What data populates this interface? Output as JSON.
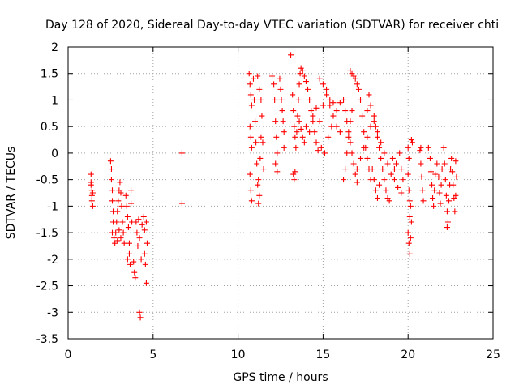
{
  "chart_data": {
    "type": "scatter",
    "title": "Day 128 of 2020, Sidereal Day-to-day VTEC variation (SDTVAR) for receiver chti",
    "xlabel": "GPS time / hours",
    "ylabel": "SDTVAR / TECUs",
    "xlim": [
      0,
      25
    ],
    "ylim": [
      -3.5,
      2
    ],
    "xticks": [
      0,
      5,
      10,
      15,
      20,
      25
    ],
    "yticks": [
      -3.5,
      -3,
      -2.5,
      -2,
      -1.5,
      -1,
      -0.5,
      0,
      0.5,
      1,
      1.5,
      2
    ],
    "xtick_labels": [
      "0",
      "5",
      "10",
      "15",
      "20",
      "25"
    ],
    "ytick_labels": [
      "-3.5",
      "-3",
      "-2.5",
      "-2",
      "-1.5",
      "-1",
      "-0.5",
      "0",
      "0.5",
      "1",
      "1.5",
      "2"
    ],
    "grid": true,
    "marker": "+",
    "color": "#ff0000",
    "points": [
      [
        1.35,
        -0.4
      ],
      [
        1.35,
        -0.55
      ],
      [
        1.4,
        -0.7
      ],
      [
        1.4,
        -0.8
      ],
      [
        1.4,
        -0.9
      ],
      [
        1.45,
        -1.0
      ],
      [
        1.35,
        -0.6
      ],
      [
        1.45,
        -0.75
      ],
      [
        2.5,
        -0.15
      ],
      [
        2.55,
        -0.3
      ],
      [
        2.55,
        -0.5
      ],
      [
        2.6,
        -0.7
      ],
      [
        2.6,
        -0.9
      ],
      [
        2.65,
        -1.1
      ],
      [
        2.65,
        -1.3
      ],
      [
        2.6,
        -1.5
      ],
      [
        2.7,
        -1.6
      ],
      [
        2.75,
        -1.7
      ],
      [
        2.8,
        -1.5
      ],
      [
        2.85,
        -1.3
      ],
      [
        2.9,
        -1.1
      ],
      [
        2.95,
        -0.9
      ],
      [
        3.0,
        -0.7
      ],
      [
        3.05,
        -0.55
      ],
      [
        3.1,
        -0.75
      ],
      [
        3.15,
        -1.0
      ],
      [
        3.2,
        -1.3
      ],
      [
        3.25,
        -1.5
      ],
      [
        3.3,
        -1.7
      ],
      [
        3.1,
        -1.6
      ],
      [
        3.0,
        -1.45
      ],
      [
        2.9,
        -1.65
      ],
      [
        3.4,
        -0.8
      ],
      [
        3.45,
        -1.0
      ],
      [
        3.5,
        -1.2
      ],
      [
        3.55,
        -1.4
      ],
      [
        3.6,
        -1.7
      ],
      [
        3.6,
        -1.9
      ],
      [
        3.65,
        -2.1
      ],
      [
        3.5,
        -2.0
      ],
      [
        3.7,
        -0.7
      ],
      [
        3.7,
        -0.95
      ],
      [
        3.75,
        -1.3
      ],
      [
        3.85,
        -2.05
      ],
      [
        3.9,
        -2.25
      ],
      [
        3.95,
        -2.35
      ],
      [
        4.0,
        -1.3
      ],
      [
        4.05,
        -1.5
      ],
      [
        4.1,
        -1.75
      ],
      [
        4.15,
        -1.25
      ],
      [
        4.2,
        -1.6
      ],
      [
        4.2,
        -3.0
      ],
      [
        4.25,
        -3.1
      ],
      [
        4.3,
        -2.0
      ],
      [
        4.35,
        -1.35
      ],
      [
        4.45,
        -1.2
      ],
      [
        4.5,
        -1.45
      ],
      [
        4.5,
        -1.9
      ],
      [
        4.55,
        -2.1
      ],
      [
        4.6,
        -2.45
      ],
      [
        4.6,
        -1.3
      ],
      [
        4.65,
        -1.7
      ],
      [
        6.7,
        0.0
      ],
      [
        6.7,
        -0.95
      ],
      [
        10.65,
        1.5
      ],
      [
        10.7,
        1.3
      ],
      [
        10.75,
        1.1
      ],
      [
        10.8,
        0.9
      ],
      [
        10.7,
        0.5
      ],
      [
        10.75,
        0.3
      ],
      [
        10.8,
        0.1
      ],
      [
        10.7,
        -0.4
      ],
      [
        10.75,
        -0.7
      ],
      [
        10.8,
        -0.9
      ],
      [
        10.9,
        1.4
      ],
      [
        10.95,
        1.0
      ],
      [
        11.0,
        0.6
      ],
      [
        11.05,
        0.2
      ],
      [
        11.1,
        -0.2
      ],
      [
        11.15,
        -0.6
      ],
      [
        11.2,
        -0.95
      ],
      [
        11.25,
        -0.8
      ],
      [
        11.2,
        -0.5
      ],
      [
        11.3,
        -0.1
      ],
      [
        11.35,
        0.3
      ],
      [
        11.4,
        0.7
      ],
      [
        11.35,
        1.0
      ],
      [
        11.15,
        1.45
      ],
      [
        11.25,
        1.2
      ],
      [
        11.45,
        0.2
      ],
      [
        11.5,
        -0.3
      ],
      [
        12.0,
        1.45
      ],
      [
        12.1,
        1.3
      ],
      [
        12.15,
        1.0
      ],
      [
        12.2,
        0.6
      ],
      [
        12.25,
        0.3
      ],
      [
        12.3,
        0.0
      ],
      [
        12.2,
        -0.2
      ],
      [
        12.3,
        -0.35
      ],
      [
        12.45,
        1.4
      ],
      [
        12.5,
        1.2
      ],
      [
        12.55,
        1.0
      ],
      [
        12.6,
        0.8
      ],
      [
        12.65,
        0.6
      ],
      [
        12.7,
        0.4
      ],
      [
        12.7,
        0.1
      ],
      [
        13.1,
        1.85
      ],
      [
        13.25,
        -0.4
      ],
      [
        13.3,
        -0.5
      ],
      [
        13.35,
        -0.35
      ],
      [
        13.2,
        1.1
      ],
      [
        13.25,
        0.8
      ],
      [
        13.3,
        0.5
      ],
      [
        13.35,
        0.3
      ],
      [
        13.4,
        0.1
      ],
      [
        13.45,
        0.4
      ],
      [
        13.5,
        0.7
      ],
      [
        13.55,
        1.0
      ],
      [
        13.6,
        1.3
      ],
      [
        13.65,
        1.5
      ],
      [
        13.7,
        1.6
      ],
      [
        13.8,
        1.55
      ],
      [
        13.9,
        1.45
      ],
      [
        14.0,
        1.35
      ],
      [
        14.1,
        1.2
      ],
      [
        14.2,
        1.0
      ],
      [
        14.3,
        0.8
      ],
      [
        14.4,
        0.6
      ],
      [
        14.5,
        0.4
      ],
      [
        14.6,
        0.2
      ],
      [
        14.7,
        0.05
      ],
      [
        13.6,
        0.6
      ],
      [
        13.7,
        0.45
      ],
      [
        13.8,
        0.3
      ],
      [
        13.9,
        0.2
      ],
      [
        14.0,
        0.5
      ],
      [
        14.2,
        0.4
      ],
      [
        14.4,
        0.7
      ],
      [
        14.6,
        0.85
      ],
      [
        14.8,
        0.6
      ],
      [
        15.0,
        0.9
      ],
      [
        15.2,
        1.1
      ],
      [
        15.4,
        0.9
      ],
      [
        15.6,
        0.7
      ],
      [
        15.8,
        0.5
      ],
      [
        16.0,
        0.4
      ],
      [
        14.8,
        1.4
      ],
      [
        15.0,
        1.3
      ],
      [
        15.2,
        1.2
      ],
      [
        15.4,
        1.0
      ],
      [
        15.6,
        0.95
      ],
      [
        14.9,
        0.1
      ],
      [
        15.1,
        0.0
      ],
      [
        15.3,
        0.3
      ],
      [
        15.5,
        0.5
      ],
      [
        15.8,
        0.8
      ],
      [
        16.0,
        0.95
      ],
      [
        16.2,
        -0.5
      ],
      [
        16.3,
        -0.3
      ],
      [
        16.4,
        0.0
      ],
      [
        16.5,
        0.3
      ],
      [
        16.6,
        0.6
      ],
      [
        16.7,
        0.8
      ],
      [
        16.2,
        1.0
      ],
      [
        16.3,
        0.8
      ],
      [
        16.4,
        0.6
      ],
      [
        16.5,
        0.4
      ],
      [
        16.6,
        0.2
      ],
      [
        16.7,
        0.0
      ],
      [
        16.8,
        -0.2
      ],
      [
        16.9,
        -0.4
      ],
      [
        17.0,
        -0.55
      ],
      [
        16.6,
        1.55
      ],
      [
        16.7,
        1.5
      ],
      [
        16.8,
        1.45
      ],
      [
        16.9,
        1.4
      ],
      [
        17.0,
        1.3
      ],
      [
        17.1,
        1.2
      ],
      [
        17.2,
        1.0
      ],
      [
        17.3,
        0.7
      ],
      [
        17.4,
        0.4
      ],
      [
        17.5,
        0.1
      ],
      [
        17.6,
        -0.1
      ],
      [
        17.7,
        -0.3
      ],
      [
        17.8,
        -0.5
      ],
      [
        17.0,
        -0.3
      ],
      [
        17.2,
        -0.1
      ],
      [
        17.4,
        0.1
      ],
      [
        17.6,
        0.3
      ],
      [
        17.8,
        0.5
      ],
      [
        18.0,
        0.6
      ],
      [
        18.2,
        0.4
      ],
      [
        18.4,
        0.2
      ],
      [
        18.6,
        0.0
      ],
      [
        18.8,
        -0.2
      ],
      [
        19.0,
        -0.4
      ],
      [
        19.2,
        -0.5
      ],
      [
        19.4,
        -0.65
      ],
      [
        19.6,
        -0.75
      ],
      [
        17.6,
        0.8
      ],
      [
        17.7,
        1.1
      ],
      [
        17.8,
        0.9
      ],
      [
        18.0,
        0.7
      ],
      [
        18.1,
        0.5
      ],
      [
        18.2,
        0.3
      ],
      [
        18.3,
        0.1
      ],
      [
        18.4,
        -0.1
      ],
      [
        18.5,
        -0.3
      ],
      [
        18.6,
        -0.5
      ],
      [
        18.7,
        -0.7
      ],
      [
        18.8,
        -0.85
      ],
      [
        18.9,
        -0.9
      ],
      [
        17.9,
        -0.3
      ],
      [
        18.0,
        -0.5
      ],
      [
        18.1,
        -0.7
      ],
      [
        18.2,
        -0.85
      ],
      [
        18.3,
        -0.6
      ],
      [
        19.1,
        -0.1
      ],
      [
        19.2,
        -0.3
      ],
      [
        19.3,
        -0.2
      ],
      [
        19.5,
        0.0
      ],
      [
        19.6,
        -0.3
      ],
      [
        19.7,
        -0.5
      ],
      [
        20.0,
        0.1
      ],
      [
        20.05,
        -0.1
      ],
      [
        20.0,
        -0.4
      ],
      [
        20.05,
        -0.7
      ],
      [
        20.1,
        -0.9
      ],
      [
        20.1,
        -1.2
      ],
      [
        20.0,
        -1.5
      ],
      [
        20.05,
        -1.7
      ],
      [
        20.1,
        -1.9
      ],
      [
        20.15,
        -1.6
      ],
      [
        20.2,
        -1.3
      ],
      [
        20.15,
        -1.0
      ],
      [
        20.2,
        0.25
      ],
      [
        20.25,
        0.2
      ],
      [
        20.7,
        0.05
      ],
      [
        20.75,
        -0.2
      ],
      [
        20.8,
        -0.45
      ],
      [
        20.85,
        -0.7
      ],
      [
        20.9,
        -0.9
      ],
      [
        20.75,
        0.1
      ],
      [
        21.2,
        0.1
      ],
      [
        21.3,
        -0.1
      ],
      [
        21.35,
        -0.35
      ],
      [
        21.4,
        -0.6
      ],
      [
        21.45,
        -0.85
      ],
      [
        21.5,
        -1.0
      ],
      [
        21.55,
        -0.7
      ],
      [
        21.6,
        -0.4
      ],
      [
        21.7,
        -0.2
      ],
      [
        21.8,
        -0.45
      ],
      [
        21.85,
        -0.75
      ],
      [
        21.9,
        -0.95
      ],
      [
        21.95,
        -0.6
      ],
      [
        22.0,
        -0.3
      ],
      [
        22.1,
        0.1
      ],
      [
        22.15,
        -0.2
      ],
      [
        22.2,
        -0.5
      ],
      [
        22.25,
        -0.8
      ],
      [
        22.3,
        -1.1
      ],
      [
        22.35,
        -1.3
      ],
      [
        22.3,
        -1.4
      ],
      [
        22.4,
        -0.9
      ],
      [
        22.45,
        -0.6
      ],
      [
        22.5,
        -0.3
      ],
      [
        22.55,
        -0.1
      ],
      [
        22.6,
        -0.35
      ],
      [
        22.65,
        -0.6
      ],
      [
        22.7,
        -0.85
      ],
      [
        22.75,
        -1.1
      ],
      [
        22.8,
        -0.8
      ],
      [
        22.85,
        -0.45
      ],
      [
        22.8,
        -0.15
      ]
    ]
  }
}
